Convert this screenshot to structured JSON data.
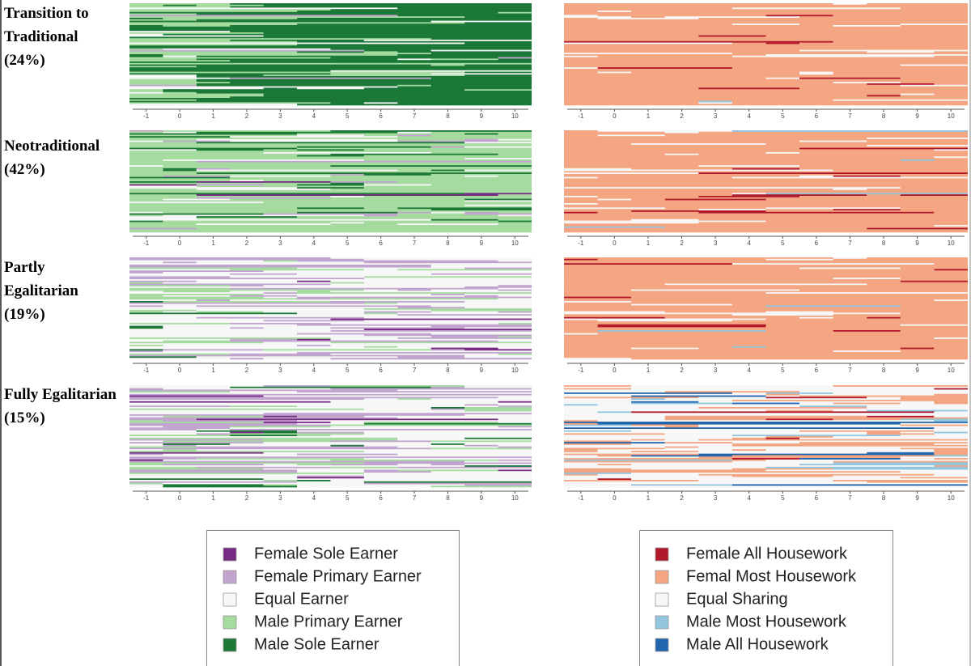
{
  "clusters": [
    {
      "label": "Transition to Traditional (24%)"
    },
    {
      "label": "Neotraditional (42%)"
    },
    {
      "label": "Partly Egalitarian (19%)"
    },
    {
      "label": "Fully Egalitarian (15%)"
    }
  ],
  "x_ticks": [
    -1,
    0,
    1,
    2,
    3,
    4,
    5,
    6,
    7,
    8,
    9,
    10
  ],
  "legends": [
    {
      "entries": [
        {
          "label": "Female Sole Earner",
          "color": "#762a83"
        },
        {
          "label": "Female Primary Earner",
          "color": "#c2a5cf"
        },
        {
          "label": "Equal Earner",
          "color": "#f7f7f7"
        },
        {
          "label": "Male Primary Earner",
          "color": "#a6dba0"
        },
        {
          "label": "Male Sole Earner",
          "color": "#1b7837"
        }
      ]
    },
    {
      "entries": [
        {
          "label": "Female All Housework",
          "color": "#b2182b"
        },
        {
          "label": "Femal Most Housework",
          "color": "#f4a582"
        },
        {
          "label": "Equal Sharing",
          "color": "#f7f7f7"
        },
        {
          "label": "Male Most Housework",
          "color": "#92c5de"
        },
        {
          "label": "Male All Housework",
          "color": "#2166ac"
        }
      ]
    }
  ]
}
